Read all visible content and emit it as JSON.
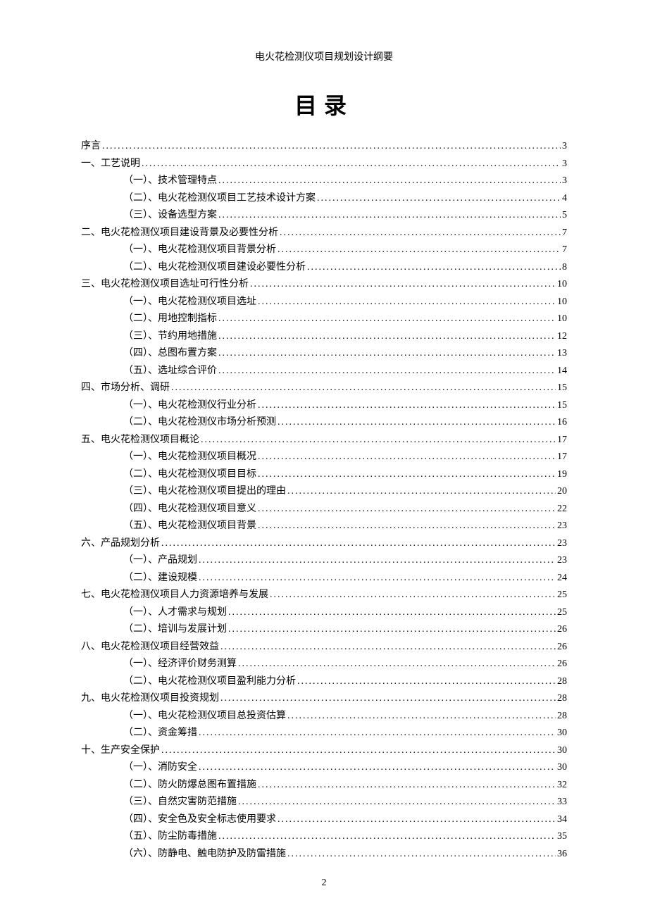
{
  "header": {
    "title": "电火花检测仪项目规划设计纲要"
  },
  "mainTitle": "目录",
  "pageNumber": "2",
  "toc": [
    {
      "level": 0,
      "label": "序言",
      "page": "3"
    },
    {
      "level": 1,
      "label": "一、工艺说明",
      "page": "3"
    },
    {
      "level": 2,
      "label": "（一）、技术管理特点",
      "page": "3"
    },
    {
      "level": 2,
      "label": "（二）、电火花检测仪项目工艺技术设计方案",
      "page": "4"
    },
    {
      "level": 2,
      "label": "（三）、设备选型方案",
      "page": "5"
    },
    {
      "level": 1,
      "label": "二、电火花检测仪项目建设背景及必要性分析",
      "page": "7"
    },
    {
      "level": 2,
      "label": "（一）、电火花检测仪项目背景分析",
      "page": "7"
    },
    {
      "level": 2,
      "label": "（二）、电火花检测仪项目建设必要性分析",
      "page": "8"
    },
    {
      "level": 1,
      "label": "三、电火花检测仪项目选址可行性分析",
      "page": "10"
    },
    {
      "level": 2,
      "label": "（一）、电火花检测仪项目选址",
      "page": "10"
    },
    {
      "level": 2,
      "label": "（二）、用地控制指标",
      "page": "10"
    },
    {
      "level": 2,
      "label": "（三）、节约用地措施",
      "page": "12"
    },
    {
      "level": 2,
      "label": "（四）、总图布置方案",
      "page": "13"
    },
    {
      "level": 2,
      "label": "（五）、选址综合评价",
      "page": "14"
    },
    {
      "level": 1,
      "label": "四、市场分析、调研",
      "page": "15"
    },
    {
      "level": 2,
      "label": "（一）、电火花检测仪行业分析",
      "page": "15"
    },
    {
      "level": 2,
      "label": "（二）、电火花检测仪市场分析预测",
      "page": "16"
    },
    {
      "level": 1,
      "label": "五、电火花检测仪项目概论",
      "page": "17"
    },
    {
      "level": 2,
      "label": "（一）、电火花检测仪项目概况",
      "page": "17"
    },
    {
      "level": 2,
      "label": "（二）、电火花检测仪项目目标",
      "page": "19"
    },
    {
      "level": 2,
      "label": "（三）、电火花检测仪项目提出的理由",
      "page": "20"
    },
    {
      "level": 2,
      "label": "（四）、电火花检测仪项目意义",
      "page": "22"
    },
    {
      "level": 2,
      "label": "（五）、电火花检测仪项目背景",
      "page": "23"
    },
    {
      "level": 1,
      "label": "六、产品规划分析",
      "page": "23"
    },
    {
      "level": 2,
      "label": "（一）、产品规划",
      "page": "23"
    },
    {
      "level": 2,
      "label": "（二）、建设规模",
      "page": "24"
    },
    {
      "level": 1,
      "label": "七、电火花检测仪项目人力资源培养与发展",
      "page": "25"
    },
    {
      "level": 2,
      "label": "（一）、人才需求与规划",
      "page": "25"
    },
    {
      "level": 2,
      "label": "（二）、培训与发展计划",
      "page": "26"
    },
    {
      "level": 1,
      "label": "八、电火花检测仪项目经营效益",
      "page": "26"
    },
    {
      "level": 2,
      "label": "（一）、经济评价财务测算",
      "page": "26"
    },
    {
      "level": 2,
      "label": "（二）、电火花检测仪项目盈利能力分析",
      "page": "28"
    },
    {
      "level": 1,
      "label": "九、电火花检测仪项目投资规划",
      "page": "28"
    },
    {
      "level": 2,
      "label": "（一）、电火花检测仪项目总投资估算",
      "page": "28"
    },
    {
      "level": 2,
      "label": "（二）、资金筹措",
      "page": "30"
    },
    {
      "level": 1,
      "label": "十、生产安全保护",
      "page": "30"
    },
    {
      "level": 2,
      "label": "（一）、消防安全",
      "page": "30"
    },
    {
      "level": 2,
      "label": "（二）、防火防爆总图布置措施",
      "page": "32"
    },
    {
      "level": 2,
      "label": "（三）、自然灾害防范措施",
      "page": "33"
    },
    {
      "level": 2,
      "label": "（四）、安全色及安全标志使用要求",
      "page": "34"
    },
    {
      "level": 2,
      "label": "（五）、防尘防毒措施",
      "page": "35"
    },
    {
      "level": 2,
      "label": "（六）、防静电、触电防护及防雷措施",
      "page": "36"
    }
  ]
}
